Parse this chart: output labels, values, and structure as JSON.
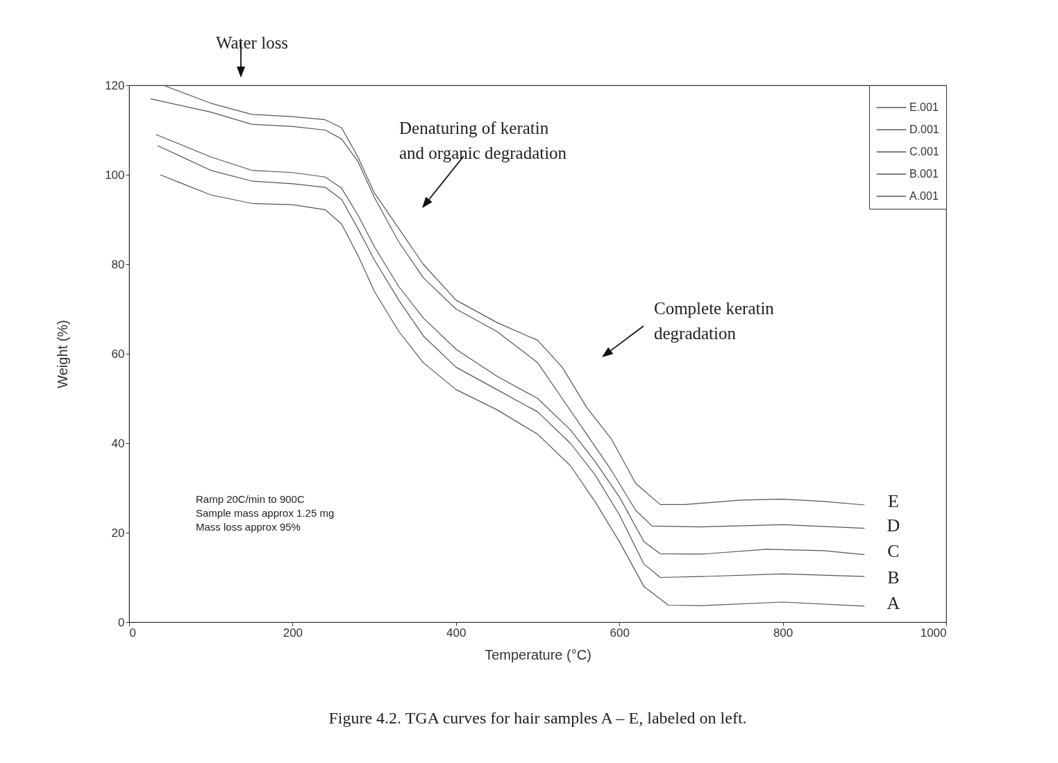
{
  "chart_data": {
    "type": "line",
    "title": "Figure 4.2. TGA curves for hair samples A – E, labeled on left.",
    "xlabel": "Temperature (°C)",
    "ylabel": "Weight (%)",
    "xlim": [
      0,
      1000
    ],
    "xticks": [
      0,
      200,
      400,
      600,
      800,
      1000
    ],
    "ylim": [
      0,
      120
    ],
    "yticks": [
      0,
      20,
      40,
      60,
      80,
      100,
      120
    ],
    "grid": false,
    "legend": "top right",
    "series": [
      {
        "name": "E.001",
        "color": "#555555",
        "x": [
          42,
          100,
          150,
          200,
          240,
          260,
          280,
          300,
          330,
          360,
          400,
          450,
          500,
          530,
          560,
          590,
          620,
          650,
          680,
          750,
          800,
          850,
          900
        ],
        "values": [
          120,
          116,
          113.5,
          113,
          112.3,
          110.5,
          104,
          96,
          88,
          80,
          72,
          67,
          63,
          57,
          48,
          41,
          31,
          26.3,
          26.3,
          27.3,
          27.5,
          27,
          26.2
        ]
      },
      {
        "name": "D.001",
        "color": "#555555",
        "x": [
          26,
          100,
          150,
          200,
          240,
          260,
          280,
          300,
          330,
          360,
          400,
          450,
          500,
          530,
          560,
          590,
          620,
          640,
          700,
          800,
          900
        ],
        "values": [
          117,
          114,
          111.3,
          110.8,
          110,
          108,
          103,
          95,
          85,
          77,
          70,
          65,
          58,
          50,
          42,
          34,
          25,
          21.5,
          21.3,
          21.8,
          21
        ]
      },
      {
        "name": "C.001",
        "color": "#555555",
        "x": [
          33,
          100,
          150,
          200,
          240,
          260,
          280,
          300,
          330,
          360,
          400,
          450,
          500,
          540,
          570,
          600,
          630,
          650,
          700,
          780,
          850,
          900
        ],
        "values": [
          109,
          104,
          101,
          100.5,
          99.5,
          97,
          91,
          84,
          75,
          68,
          61,
          55,
          50,
          43,
          36,
          28,
          18,
          15.3,
          15.2,
          16.3,
          16,
          15.1
        ]
      },
      {
        "name": "B.001",
        "color": "#555555",
        "x": [
          35,
          100,
          150,
          200,
          240,
          260,
          280,
          300,
          330,
          360,
          400,
          450,
          500,
          540,
          570,
          600,
          630,
          650,
          700,
          800,
          900
        ],
        "values": [
          106.5,
          101,
          98.6,
          98,
          97.2,
          94.5,
          88,
          81,
          72,
          64,
          57,
          52,
          47,
          40,
          33,
          24,
          13,
          10,
          10.2,
          10.8,
          10.2
        ]
      },
      {
        "name": "A.001",
        "color": "#555555",
        "x": [
          38,
          100,
          150,
          200,
          240,
          260,
          280,
          300,
          330,
          360,
          400,
          450,
          500,
          540,
          570,
          600,
          630,
          660,
          700,
          800,
          900
        ],
        "values": [
          100,
          95.5,
          93.6,
          93.3,
          92.2,
          89,
          82,
          74,
          65,
          58,
          52,
          47.5,
          42,
          35,
          27,
          18,
          8,
          3.8,
          3.7,
          4.5,
          3.6
        ]
      }
    ],
    "annotations": [
      "Water loss",
      "Denaturing of keratin\nand organic degradation",
      "Complete keratin\ndegradation",
      "Ramp 20C/min to 900C\nSample mass approx 1.25 mg\nMass loss approx 95%",
      "E",
      "D",
      "C",
      "B",
      "A"
    ]
  }
}
